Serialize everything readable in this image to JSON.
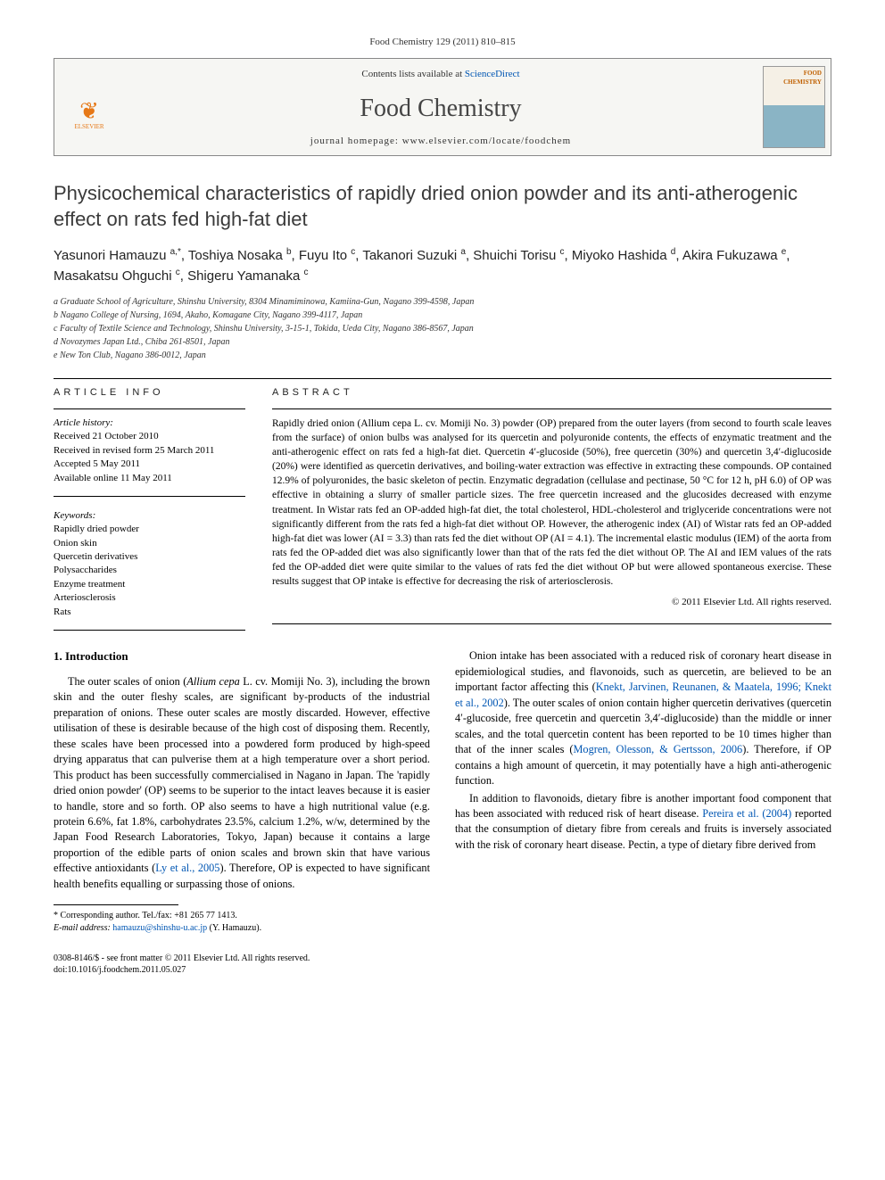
{
  "citation": "Food Chemistry 129 (2011) 810–815",
  "banner": {
    "contents_prefix": "Contents lists available at ",
    "sciencedirect": "ScienceDirect",
    "journal": "Food Chemistry",
    "homepage_prefix": "journal homepage: ",
    "homepage_url": "www.elsevier.com/locate/foodchem",
    "publisher": "ELSEVIER",
    "cover_text": "FOOD CHEMISTRY"
  },
  "title": "Physicochemical characteristics of rapidly dried onion powder and its anti-atherogenic effect on rats fed high-fat diet",
  "authors_html": "Yasunori Hamauzu <sup>a,*</sup>, Toshiya Nosaka <sup>b</sup>, Fuyu Ito <sup>c</sup>, Takanori Suzuki <sup>a</sup>, Shuichi Torisu <sup>c</sup>, Miyoko Hashida <sup>d</sup>, Akira Fukuzawa <sup>e</sup>, Masakatsu Ohguchi <sup>c</sup>, Shigeru Yamanaka <sup>c</sup>",
  "affiliations": [
    "a Graduate School of Agriculture, Shinshu University, 8304 Minamiminowa, Kamiina-Gun, Nagano 399-4598, Japan",
    "b Nagano College of Nursing, 1694, Akaho, Komagane City, Nagano 399-4117, Japan",
    "c Faculty of Textile Science and Technology, Shinshu University, 3-15-1, Tokida, Ueda City, Nagano 386-8567, Japan",
    "d Novozymes Japan Ltd., Chiba 261-8501, Japan",
    "e New Ton Club, Nagano 386-0012, Japan"
  ],
  "info_heading": "ARTICLE INFO",
  "abstract_heading": "ABSTRACT",
  "history_label": "Article history:",
  "history": [
    "Received 21 October 2010",
    "Received in revised form 25 March 2011",
    "Accepted 5 May 2011",
    "Available online 11 May 2011"
  ],
  "keywords_label": "Keywords:",
  "keywords": [
    "Rapidly dried powder",
    "Onion skin",
    "Quercetin derivatives",
    "Polysaccharides",
    "Enzyme treatment",
    "Arteriosclerosis",
    "Rats"
  ],
  "abstract": "Rapidly dried onion (Allium cepa L. cv. Momiji No. 3) powder (OP) prepared from the outer layers (from second to fourth scale leaves from the surface) of onion bulbs was analysed for its quercetin and polyuronide contents, the effects of enzymatic treatment and the anti-atherogenic effect on rats fed a high-fat diet. Quercetin 4′-glucoside (50%), free quercetin (30%) and quercetin 3,4′-diglucoside (20%) were identified as quercetin derivatives, and boiling-water extraction was effective in extracting these compounds. OP contained 12.9% of polyuronides, the basic skeleton of pectin. Enzymatic degradation (cellulase and pectinase, 50 °C for 12 h, pH 6.0) of OP was effective in obtaining a slurry of smaller particle sizes. The free quercetin increased and the glucosides decreased with enzyme treatment. In Wistar rats fed an OP-added high-fat diet, the total cholesterol, HDL-cholesterol and triglyceride concentrations were not significantly different from the rats fed a high-fat diet without OP. However, the atherogenic index (AI) of Wistar rats fed an OP-added high-fat diet was lower (AI = 3.3) than rats fed the diet without OP (AI = 4.1). The incremental elastic modulus (IEM) of the aorta from rats fed the OP-added diet was also significantly lower than that of the rats fed the diet without OP. The AI and IEM values of the rats fed the OP-added diet were quite similar to the values of rats fed the diet without OP but were allowed spontaneous exercise. These results suggest that OP intake is effective for decreasing the risk of arteriosclerosis.",
  "copyright": "© 2011 Elsevier Ltd. All rights reserved.",
  "intro_heading": "1. Introduction",
  "body_paragraphs": [
    "The outer scales of onion (<span class='italic'>Allium cepa</span> L. cv. Momiji No. 3), including the brown skin and the outer fleshy scales, are significant by-products of the industrial preparation of onions. These outer scales are mostly discarded. However, effective utilisation of these is desirable because of the high cost of disposing them. Recently, these scales have been processed into a powdered form produced by high-speed drying apparatus that can pulverise them at a high temperature over a short period. This product has been successfully commercialised in Nagano in Japan. The 'rapidly dried onion powder' (OP) seems to be superior to the intact leaves because it is easier to handle, store and so forth. OP also seems to have a high nutritional value (e.g. protein 6.6%, fat 1.8%, carbohydrates 23.5%, calcium 1.2%, w/w, determined by the Japan Food Research Laboratories, Tokyo, Japan) because it contains a large proportion of the edible parts of onion scales and brown skin that have various effective antioxidants (<span class='cite'>Ly et al., 2005</span>). Therefore, OP is expected to have significant health benefits equalling or surpassing those of onions.",
    "Onion intake has been associated with a reduced risk of coronary heart disease in epidemiological studies, and flavonoids, such as quercetin, are believed to be an important factor affecting this (<span class='cite'>Knekt, Jarvinen, Reunanen, & Maatela, 1996; Knekt et al., 2002</span>). The outer scales of onion contain higher quercetin derivatives (quercetin 4′-glucoside, free quercetin and quercetin 3,4′-diglucoside) than the middle or inner scales, and the total quercetin content has been reported to be 10 times higher than that of the inner scales (<span class='cite'>Mogren, Olesson, & Gertsson, 2006</span>). Therefore, if OP contains a high amount of quercetin, it may potentially have a high anti-atherogenic function.",
    "In addition to flavonoids, dietary fibre is another important food component that has been associated with reduced risk of heart disease. <span class='cite'>Pereira et al. (2004)</span> reported that the consumption of dietary fibre from cereals and fruits is inversely associated with the risk of coronary heart disease. Pectin, a type of dietary fibre derived from"
  ],
  "footnote": {
    "corr": "* Corresponding author. Tel./fax: +81 265 77 1413.",
    "email_label": "E-mail address:",
    "email": "hamauzu@shinshu-u.ac.jp",
    "email_suffix": "(Y. Hamauzu)."
  },
  "footer": {
    "line1": "0308-8146/$ - see front matter © 2011 Elsevier Ltd. All rights reserved.",
    "line2": "doi:10.1016/j.foodchem.2011.05.027"
  }
}
